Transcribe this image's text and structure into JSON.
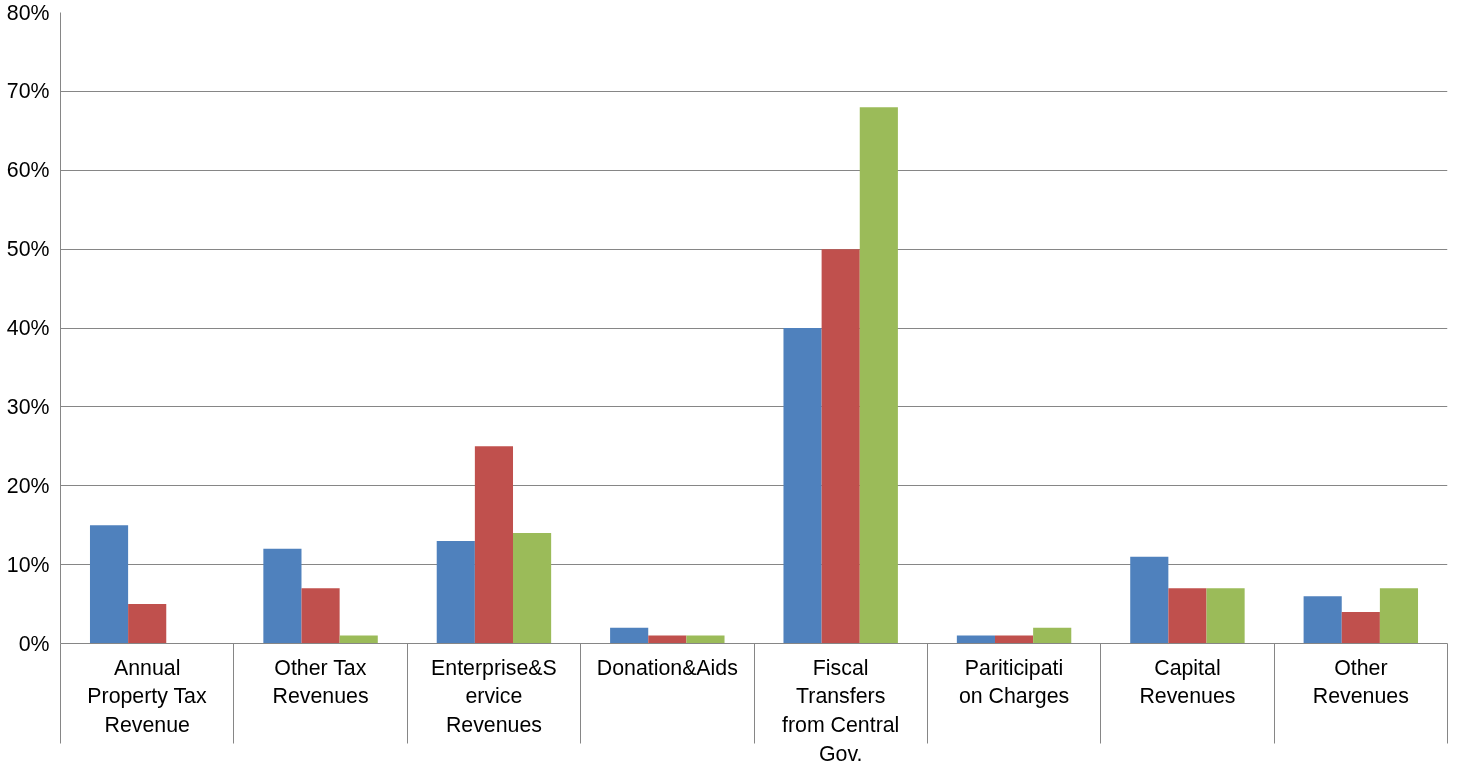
{
  "chart_data": {
    "type": "bar",
    "categories": [
      "Annual Property Tax Revenue",
      "Other Tax Revenues",
      "Enterprise&Service Revenues",
      "Donation&Aids",
      "Fiscal Transfers from Central Gov.",
      "Pariticipation Charges",
      "Capital Revenues",
      "Other Revenues"
    ],
    "series": [
      {
        "color": "#4f81bd",
        "values": [
          15,
          12,
          13,
          2,
          40,
          1,
          11,
          6
        ]
      },
      {
        "color": "#c0504d",
        "values": [
          5,
          7,
          25,
          1,
          50,
          1,
          7,
          4
        ]
      },
      {
        "color": "#9bbb59",
        "values": [
          0,
          1,
          14,
          1,
          68,
          2,
          7,
          7
        ]
      }
    ],
    "ylim": [
      0,
      80
    ],
    "yticks": [
      {
        "value": 0,
        "label": "0%"
      },
      {
        "value": 10,
        "label": "10%"
      },
      {
        "value": 20,
        "label": "20%"
      },
      {
        "value": 30,
        "label": "30%"
      },
      {
        "value": 40,
        "label": "40%"
      },
      {
        "value": 50,
        "label": "50%"
      },
      {
        "value": 60,
        "label": "60%"
      },
      {
        "value": 70,
        "label": "70%"
      },
      {
        "value": 80,
        "label": "80%"
      }
    ],
    "grid": "y"
  }
}
